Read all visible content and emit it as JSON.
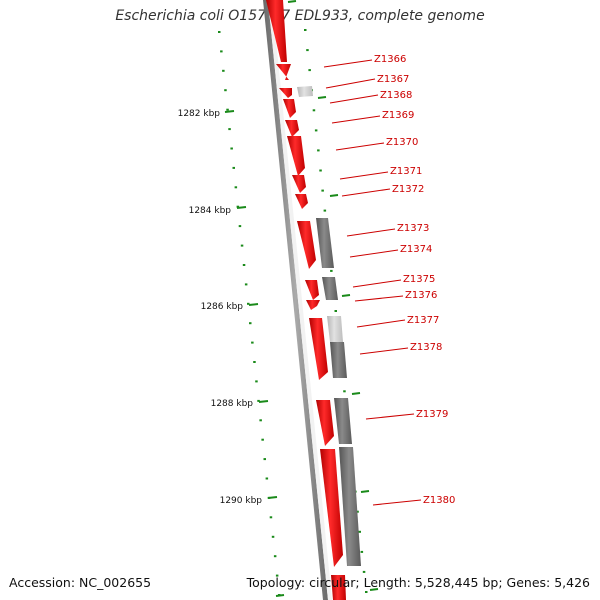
{
  "title": "Escherichia coli O157:H7 EDL933, complete genome",
  "accession": "Accession: NC_002655",
  "summary": "Topology: circular; Length: 5,528,445 bp; Genes: 5,426",
  "colors": {
    "forward": "#ff0000",
    "forward_dark": "#cc0000",
    "reverse": "#7a7a7a",
    "faint": "#c8c8c8",
    "backbone": "#808080",
    "ruler": "#1a8a1a",
    "label": "#cc0000"
  },
  "ruler_labels": [
    "1282 kbp",
    "1284 kbp",
    "1286 kbp",
    "1288 kbp",
    "1290 kbp"
  ],
  "genes": [
    "Z1366",
    "Z1367",
    "Z1368",
    "Z1369",
    "Z1370",
    "Z1371",
    "Z1372",
    "Z1373",
    "Z1374",
    "Z1375",
    "Z1376",
    "Z1377",
    "Z1378",
    "Z1379",
    "Z1380"
  ]
}
